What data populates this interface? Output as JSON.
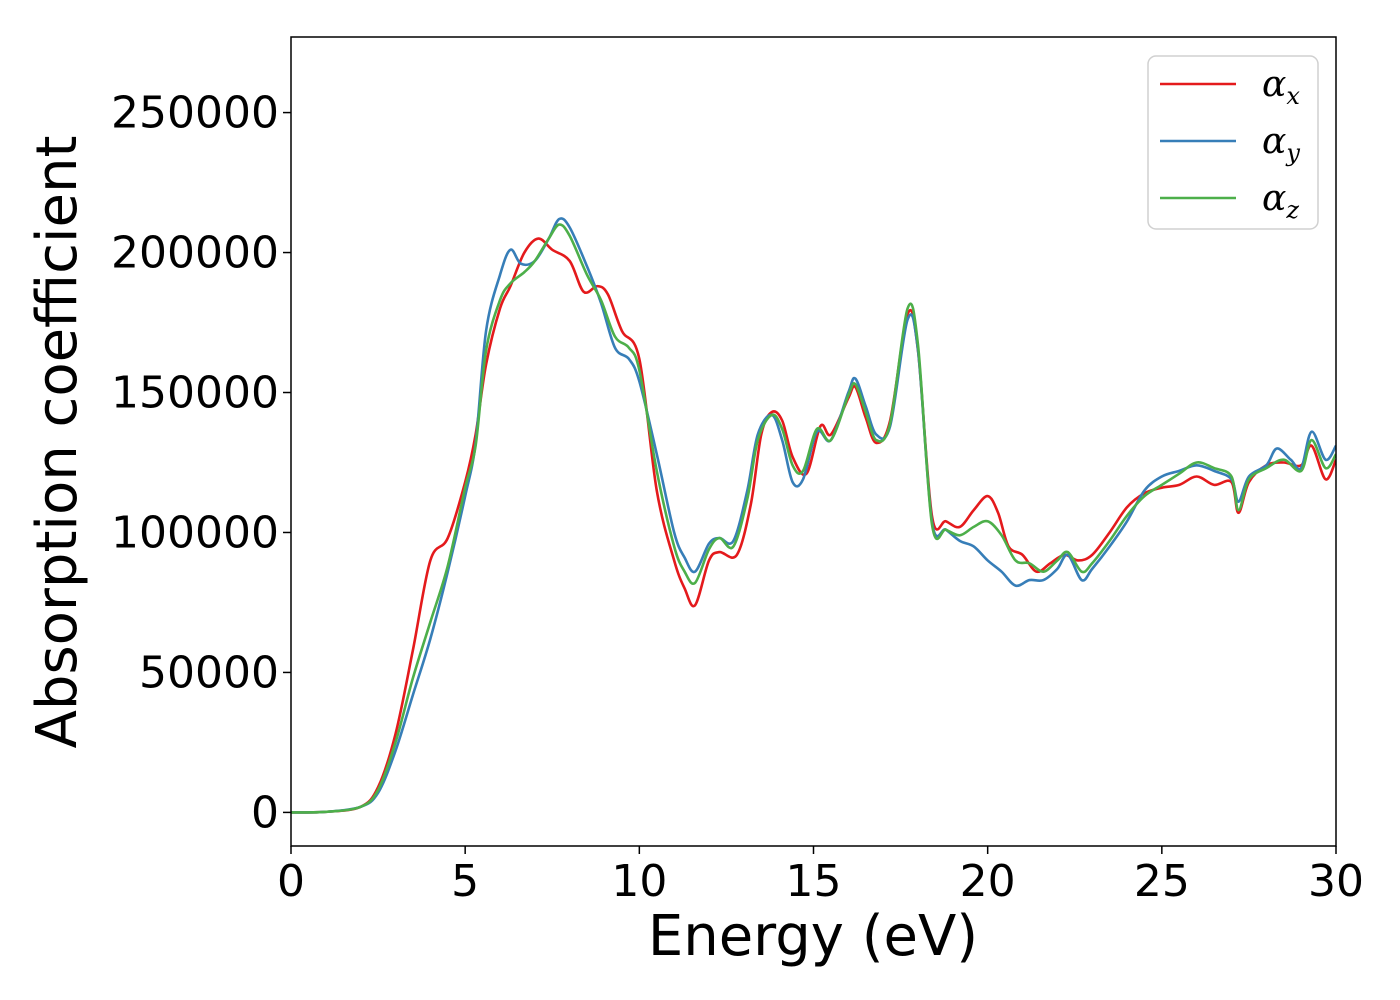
{
  "chart_data": {
    "type": "line",
    "xlabel": "Energy (eV)",
    "ylabel": "Absorption coefficient",
    "xlim": [
      0,
      30
    ],
    "ylim": [
      -12000,
      277000
    ],
    "xticks": [
      0,
      5,
      10,
      15,
      20,
      25,
      30
    ],
    "yticks": [
      0,
      50000,
      100000,
      150000,
      200000,
      250000
    ],
    "grid": false,
    "legend_position": "top-right",
    "series": [
      {
        "name": "α",
        "subscript": "x",
        "color": "#e41a1c",
        "points": [
          [
            0,
            0
          ],
          [
            1,
            200
          ],
          [
            2,
            2000
          ],
          [
            2.5,
            9000
          ],
          [
            3,
            28000
          ],
          [
            3.5,
            58000
          ],
          [
            4,
            90000
          ],
          [
            4.5,
            98000
          ],
          [
            5,
            118000
          ],
          [
            5.3,
            135000
          ],
          [
            5.6,
            160000
          ],
          [
            6,
            180000
          ],
          [
            6.3,
            188000
          ],
          [
            6.7,
            200000
          ],
          [
            7.1,
            205000
          ],
          [
            7.5,
            201000
          ],
          [
            8,
            197000
          ],
          [
            8.4,
            186000
          ],
          [
            8.8,
            188000
          ],
          [
            9.1,
            185000
          ],
          [
            9.5,
            172000
          ],
          [
            10,
            162000
          ],
          [
            10.5,
            115000
          ],
          [
            11,
            90000
          ],
          [
            11.3,
            80000
          ],
          [
            11.6,
            74000
          ],
          [
            12,
            90000
          ],
          [
            12.3,
            93000
          ],
          [
            12.8,
            92000
          ],
          [
            13.2,
            110000
          ],
          [
            13.5,
            135000
          ],
          [
            13.8,
            143000
          ],
          [
            14.1,
            140000
          ],
          [
            14.4,
            127000
          ],
          [
            14.8,
            121000
          ],
          [
            15.2,
            138000
          ],
          [
            15.5,
            135000
          ],
          [
            16,
            148000
          ],
          [
            16.2,
            152000
          ],
          [
            16.5,
            141000
          ],
          [
            16.8,
            132000
          ],
          [
            17.2,
            140000
          ],
          [
            17.7,
            178000
          ],
          [
            18,
            165000
          ],
          [
            18.4,
            106000
          ],
          [
            18.8,
            104000
          ],
          [
            19.2,
            102000
          ],
          [
            19.6,
            108000
          ],
          [
            20,
            113000
          ],
          [
            20.3,
            107000
          ],
          [
            20.6,
            95000
          ],
          [
            21,
            92000
          ],
          [
            21.4,
            86000
          ],
          [
            21.8,
            89000
          ],
          [
            22.2,
            92000
          ],
          [
            22.6,
            90000
          ],
          [
            23,
            92000
          ],
          [
            23.5,
            100000
          ],
          [
            24,
            109000
          ],
          [
            24.5,
            114000
          ],
          [
            25,
            116000
          ],
          [
            25.5,
            117000
          ],
          [
            26,
            120000
          ],
          [
            26.5,
            117000
          ],
          [
            27,
            118000
          ],
          [
            27.2,
            107000
          ],
          [
            27.5,
            118000
          ],
          [
            28,
            124000
          ],
          [
            28.5,
            125000
          ],
          [
            29,
            124000
          ],
          [
            29.3,
            131000
          ],
          [
            29.7,
            119000
          ],
          [
            30,
            126000
          ]
        ]
      },
      {
        "name": "α",
        "subscript": "y",
        "color": "#377eb8",
        "points": [
          [
            0,
            0
          ],
          [
            1,
            200
          ],
          [
            2,
            2000
          ],
          [
            2.5,
            7000
          ],
          [
            3,
            22000
          ],
          [
            3.5,
            42000
          ],
          [
            4,
            62000
          ],
          [
            4.5,
            86000
          ],
          [
            5,
            113000
          ],
          [
            5.3,
            132000
          ],
          [
            5.6,
            172000
          ],
          [
            6,
            192000
          ],
          [
            6.3,
            201000
          ],
          [
            6.6,
            196000
          ],
          [
            7,
            197000
          ],
          [
            7.4,
            205000
          ],
          [
            7.7,
            212000
          ],
          [
            8,
            209000
          ],
          [
            8.5,
            195000
          ],
          [
            8.9,
            182000
          ],
          [
            9.3,
            166000
          ],
          [
            9.7,
            162000
          ],
          [
            10,
            154000
          ],
          [
            10.5,
            128000
          ],
          [
            11,
            100000
          ],
          [
            11.3,
            91000
          ],
          [
            11.6,
            86000
          ],
          [
            12,
            96000
          ],
          [
            12.3,
            98000
          ],
          [
            12.7,
            97000
          ],
          [
            13.1,
            115000
          ],
          [
            13.4,
            135000
          ],
          [
            13.8,
            142000
          ],
          [
            14.1,
            133000
          ],
          [
            14.4,
            118000
          ],
          [
            14.7,
            119000
          ],
          [
            15.1,
            136000
          ],
          [
            15.5,
            133000
          ],
          [
            16,
            150000
          ],
          [
            16.2,
            155000
          ],
          [
            16.5,
            145000
          ],
          [
            16.8,
            135000
          ],
          [
            17.2,
            138000
          ],
          [
            17.7,
            176000
          ],
          [
            18,
            165000
          ],
          [
            18.4,
            104000
          ],
          [
            18.8,
            101000
          ],
          [
            19.2,
            97000
          ],
          [
            19.6,
            95000
          ],
          [
            20,
            90000
          ],
          [
            20.4,
            86000
          ],
          [
            20.8,
            81000
          ],
          [
            21.2,
            83000
          ],
          [
            21.6,
            83000
          ],
          [
            22,
            87000
          ],
          [
            22.3,
            92000
          ],
          [
            22.7,
            83000
          ],
          [
            23,
            87000
          ],
          [
            23.5,
            95000
          ],
          [
            24,
            104000
          ],
          [
            24.5,
            115000
          ],
          [
            25,
            120000
          ],
          [
            25.5,
            122000
          ],
          [
            26,
            124000
          ],
          [
            26.5,
            122000
          ],
          [
            27,
            119000
          ],
          [
            27.2,
            111000
          ],
          [
            27.5,
            120000
          ],
          [
            28,
            124000
          ],
          [
            28.3,
            130000
          ],
          [
            28.7,
            126000
          ],
          [
            29,
            123000
          ],
          [
            29.3,
            136000
          ],
          [
            29.7,
            126000
          ],
          [
            30,
            131000
          ]
        ]
      },
      {
        "name": "α",
        "subscript": "z",
        "color": "#4daf4a",
        "points": [
          [
            0,
            0
          ],
          [
            1,
            200
          ],
          [
            2,
            2000
          ],
          [
            2.5,
            8000
          ],
          [
            3,
            25000
          ],
          [
            3.5,
            48000
          ],
          [
            4,
            68000
          ],
          [
            4.5,
            88000
          ],
          [
            5,
            116000
          ],
          [
            5.3,
            131000
          ],
          [
            5.6,
            165000
          ],
          [
            6,
            183000
          ],
          [
            6.3,
            189000
          ],
          [
            6.7,
            193000
          ],
          [
            7,
            197000
          ],
          [
            7.4,
            205000
          ],
          [
            7.7,
            210000
          ],
          [
            8,
            206000
          ],
          [
            8.5,
            192000
          ],
          [
            8.9,
            183000
          ],
          [
            9.3,
            170000
          ],
          [
            9.7,
            166000
          ],
          [
            10,
            158000
          ],
          [
            10.5,
            122000
          ],
          [
            11,
            95000
          ],
          [
            11.3,
            86000
          ],
          [
            11.6,
            82000
          ],
          [
            12,
            94000
          ],
          [
            12.3,
            98000
          ],
          [
            12.7,
            95000
          ],
          [
            13.1,
            112000
          ],
          [
            13.4,
            133000
          ],
          [
            13.8,
            142000
          ],
          [
            14.1,
            137000
          ],
          [
            14.4,
            124000
          ],
          [
            14.7,
            122000
          ],
          [
            15.1,
            137000
          ],
          [
            15.5,
            133000
          ],
          [
            16,
            149000
          ],
          [
            16.2,
            153000
          ],
          [
            16.5,
            143000
          ],
          [
            16.8,
            133000
          ],
          [
            17.2,
            139000
          ],
          [
            17.7,
            180000
          ],
          [
            18,
            167000
          ],
          [
            18.4,
            103000
          ],
          [
            18.8,
            101000
          ],
          [
            19.2,
            99000
          ],
          [
            19.6,
            102000
          ],
          [
            20,
            104000
          ],
          [
            20.4,
            99000
          ],
          [
            20.8,
            90000
          ],
          [
            21.2,
            89000
          ],
          [
            21.6,
            86000
          ],
          [
            22,
            90000
          ],
          [
            22.3,
            93000
          ],
          [
            22.7,
            86000
          ],
          [
            23,
            89000
          ],
          [
            23.5,
            97000
          ],
          [
            24,
            106000
          ],
          [
            24.5,
            113000
          ],
          [
            25,
            117000
          ],
          [
            25.5,
            121000
          ],
          [
            26,
            125000
          ],
          [
            26.5,
            123000
          ],
          [
            27,
            120000
          ],
          [
            27.2,
            108000
          ],
          [
            27.5,
            119000
          ],
          [
            28,
            123000
          ],
          [
            28.5,
            126000
          ],
          [
            29,
            122000
          ],
          [
            29.3,
            133000
          ],
          [
            29.7,
            123000
          ],
          [
            30,
            128000
          ]
        ]
      }
    ]
  }
}
